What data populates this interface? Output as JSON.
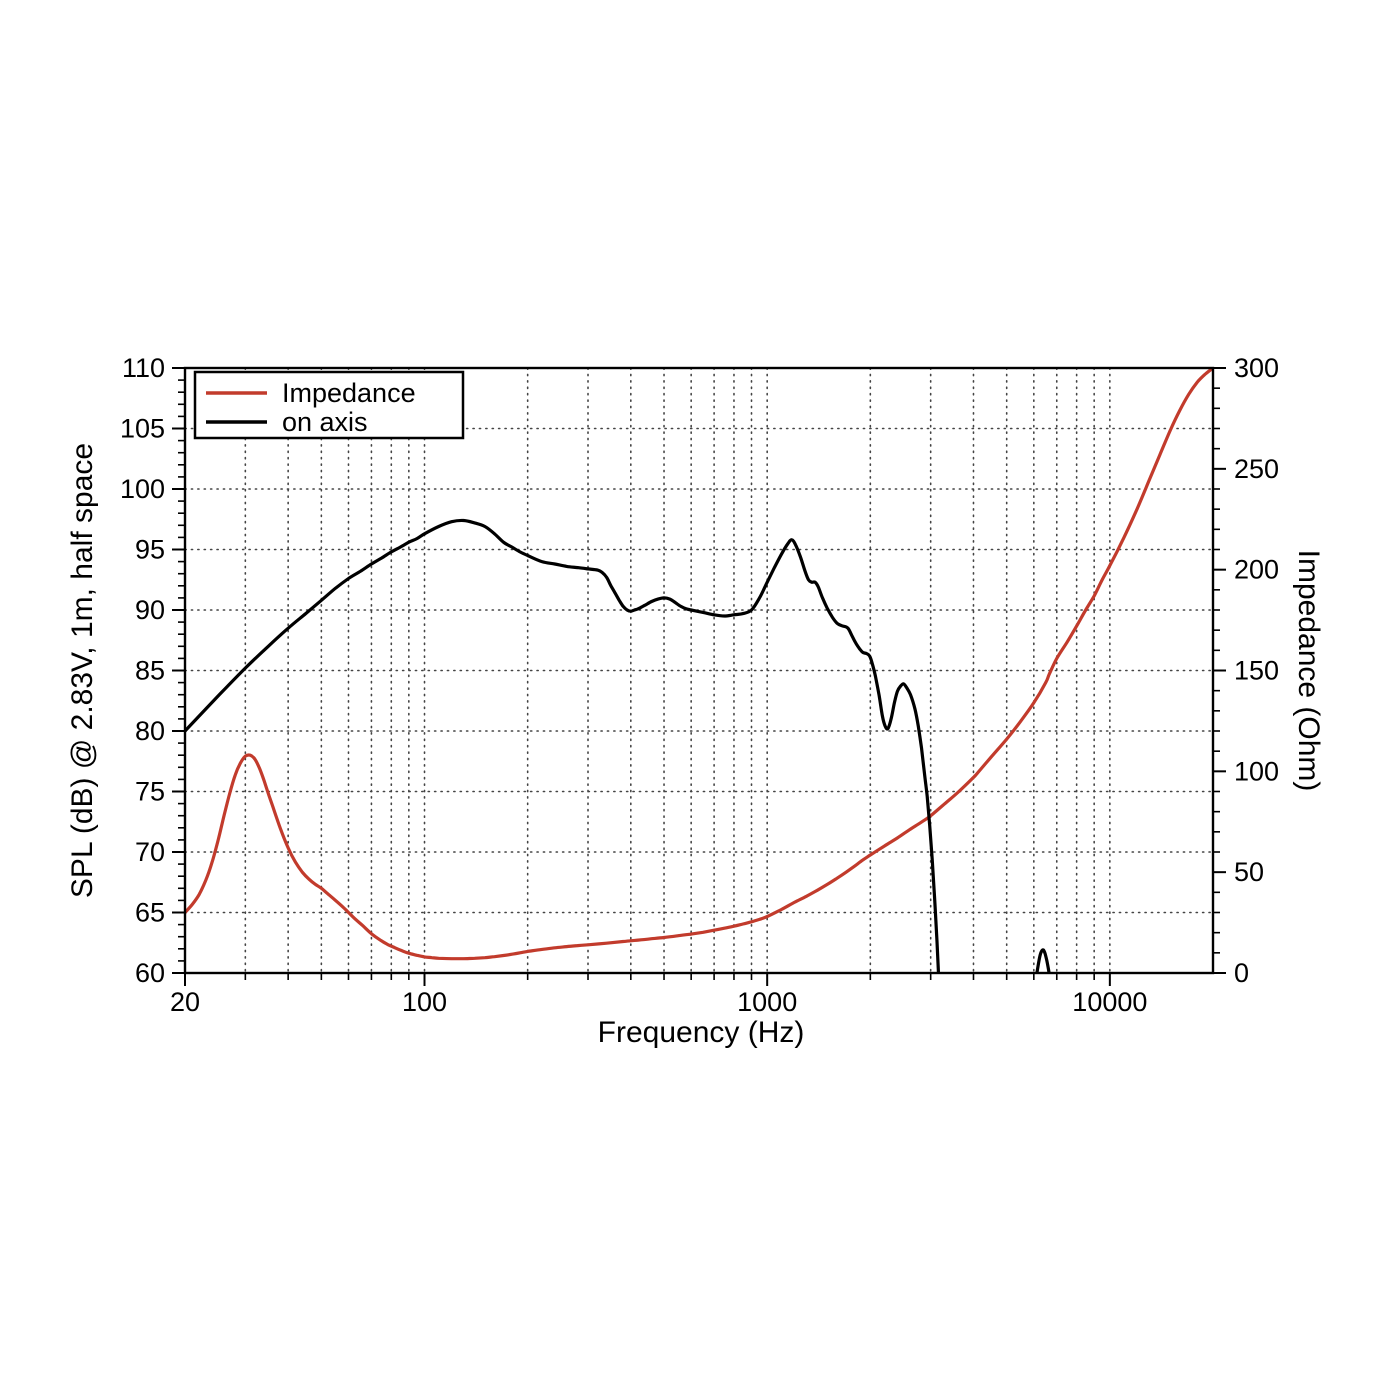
{
  "page": {
    "background": "#ffffff"
  },
  "chart_data": {
    "type": "line",
    "title": "",
    "xlabel": "Frequency (Hz)",
    "ylabel_left": "SPL (dB) @ 2.83V, 1m, half space",
    "ylabel_right": "Impedance (Ohm)",
    "x_scale": "log",
    "xlim": [
      20,
      20000
    ],
    "ylim_left": [
      60,
      110
    ],
    "ylim_right": [
      0,
      300
    ],
    "grid": "dotted",
    "colors": {
      "impedance": "#c23b2c",
      "on_axis": "#000000",
      "grid": "#444444",
      "spine": "#000000",
      "legend_border": "#000000",
      "legend_bg": "#ffffff"
    },
    "x_major_ticks": [
      {
        "value": 20,
        "label": "20"
      },
      {
        "value": 100,
        "label": "100"
      },
      {
        "value": 1000,
        "label": "1000"
      },
      {
        "value": 10000,
        "label": "10000"
      }
    ],
    "x_minor_ticks": [
      30,
      40,
      50,
      60,
      70,
      80,
      90,
      200,
      300,
      400,
      500,
      600,
      700,
      800,
      900,
      2000,
      3000,
      4000,
      5000,
      6000,
      7000,
      8000,
      9000
    ],
    "y_left_ticks": [
      {
        "value": 60,
        "label": "60"
      },
      {
        "value": 65,
        "label": "65"
      },
      {
        "value": 70,
        "label": "70"
      },
      {
        "value": 75,
        "label": "75"
      },
      {
        "value": 80,
        "label": "80"
      },
      {
        "value": 85,
        "label": "85"
      },
      {
        "value": 90,
        "label": "90"
      },
      {
        "value": 95,
        "label": "95"
      },
      {
        "value": 100,
        "label": "100"
      },
      {
        "value": 105,
        "label": "105"
      },
      {
        "value": 110,
        "label": "110"
      }
    ],
    "y_left_minor_step": 1,
    "y_right_ticks": [
      {
        "value": 0,
        "label": "0"
      },
      {
        "value": 50,
        "label": "50"
      },
      {
        "value": 100,
        "label": "100"
      },
      {
        "value": 150,
        "label": "150"
      },
      {
        "value": 200,
        "label": "200"
      },
      {
        "value": 250,
        "label": "250"
      },
      {
        "value": 300,
        "label": "300"
      }
    ],
    "y_right_minor_step": 10,
    "h_gridlines_db": [
      65,
      70,
      75,
      80,
      85,
      90,
      95,
      100,
      105
    ],
    "v_gridlines_hz": [
      30,
      40,
      50,
      60,
      70,
      80,
      90,
      100,
      200,
      300,
      400,
      500,
      600,
      700,
      800,
      900,
      1000,
      2000,
      3000,
      4000,
      5000,
      6000,
      7000,
      8000,
      9000,
      10000
    ],
    "legend": {
      "position": "upper-left",
      "entries": [
        {
          "label": "Impedance",
          "color": "#c23b2c"
        },
        {
          "label": "on axis",
          "color": "#000000"
        }
      ]
    },
    "series": [
      {
        "name": "Impedance",
        "axis": "right",
        "unit": "Ohm",
        "color": "#c23b2c",
        "segments": [
          [
            [
              20,
              30
            ],
            [
              21,
              34
            ],
            [
              22,
              39
            ],
            [
              23,
              46
            ],
            [
              24,
              55
            ],
            [
              25,
              66
            ],
            [
              26,
              78
            ],
            [
              27,
              89
            ],
            [
              28,
              98
            ],
            [
              29,
              104
            ],
            [
              30,
              107.5
            ],
            [
              31,
              108
            ],
            [
              32,
              106
            ],
            [
              33,
              101.5
            ],
            [
              34,
              95.5
            ],
            [
              35,
              89
            ],
            [
              36,
              83
            ],
            [
              38,
              71.5
            ],
            [
              40,
              62
            ],
            [
              42,
              55
            ],
            [
              44,
              50
            ],
            [
              46,
              46.5
            ],
            [
              48,
              44
            ],
            [
              50,
              42
            ],
            [
              52,
              39.5
            ],
            [
              55,
              36
            ],
            [
              58,
              32.5
            ],
            [
              60,
              30
            ],
            [
              63,
              26.5
            ],
            [
              66,
              23.5
            ],
            [
              70,
              19.5
            ],
            [
              74,
              16.5
            ],
            [
              78,
              14.2
            ],
            [
              82,
              12.5
            ],
            [
              86,
              11
            ],
            [
              90,
              9.8
            ],
            [
              95,
              8.8
            ],
            [
              100,
              8
            ],
            [
              105,
              7.6
            ],
            [
              110,
              7.3
            ],
            [
              120,
              7.1
            ],
            [
              130,
              7.1
            ],
            [
              140,
              7.3
            ],
            [
              150,
              7.6
            ],
            [
              160,
              8.1
            ],
            [
              170,
              8.7
            ],
            [
              180,
              9.3
            ],
            [
              190,
              10
            ],
            [
              200,
              10.7
            ],
            [
              220,
              11.7
            ],
            [
              240,
              12.5
            ],
            [
              260,
              13.1
            ],
            [
              280,
              13.6
            ],
            [
              300,
              14
            ],
            [
              340,
              14.8
            ],
            [
              380,
              15.6
            ],
            [
              420,
              16.3
            ],
            [
              460,
              17
            ],
            [
              500,
              17.6
            ],
            [
              550,
              18.5
            ],
            [
              600,
              19.3
            ],
            [
              650,
              20.2
            ],
            [
              700,
              21.2
            ],
            [
              750,
              22.2
            ],
            [
              800,
              23.2
            ],
            [
              850,
              24.3
            ],
            [
              900,
              25.4
            ],
            [
              950,
              26.6
            ],
            [
              1000,
              28
            ],
            [
              1100,
              31.5
            ],
            [
              1200,
              35
            ],
            [
              1300,
              38
            ],
            [
              1400,
              41
            ],
            [
              1500,
              44
            ],
            [
              1600,
              47
            ],
            [
              1700,
              50
            ],
            [
              1800,
              53
            ],
            [
              1900,
              56
            ],
            [
              2000,
              58.5
            ],
            [
              2200,
              63
            ],
            [
              2400,
              67
            ],
            [
              2600,
              71
            ],
            [
              2800,
              74.5
            ],
            [
              3000,
              78
            ],
            [
              3300,
              84
            ],
            [
              3600,
              89.5
            ],
            [
              4000,
              97
            ],
            [
              4100,
              99
            ],
            [
              4500,
              107
            ],
            [
              5000,
              116
            ],
            [
              5500,
              125
            ],
            [
              6000,
              134
            ],
            [
              6500,
              144
            ],
            [
              6650,
              148
            ],
            [
              7000,
              156
            ],
            [
              7500,
              164
            ],
            [
              8000,
              172
            ],
            [
              8500,
              180
            ],
            [
              9000,
              187
            ],
            [
              9500,
              195
            ],
            [
              10000,
              202
            ],
            [
              11000,
              216
            ],
            [
              12000,
              230
            ],
            [
              13000,
              244
            ],
            [
              14000,
              257
            ],
            [
              15000,
              269
            ],
            [
              16000,
              279
            ],
            [
              17000,
              287
            ],
            [
              18000,
              293
            ],
            [
              19000,
              297
            ],
            [
              20000,
              300
            ]
          ]
        ]
      },
      {
        "name": "on axis",
        "axis": "left",
        "unit": "dB",
        "color": "#000000",
        "segments": [
          [
            [
              20,
              80
            ],
            [
              25,
              82.9
            ],
            [
              30,
              85.2
            ],
            [
              35,
              87
            ],
            [
              40,
              88.5
            ],
            [
              45,
              89.7
            ],
            [
              50,
              90.8
            ],
            [
              55,
              91.8
            ],
            [
              60,
              92.6
            ],
            [
              65,
              93.2
            ],
            [
              70,
              93.8
            ],
            [
              75,
              94.3
            ],
            [
              80,
              94.8
            ],
            [
              85,
              95.2
            ],
            [
              90,
              95.6
            ],
            [
              95,
              95.9
            ],
            [
              100,
              96.3
            ],
            [
              110,
              96.9
            ],
            [
              120,
              97.3
            ],
            [
              130,
              97.4
            ],
            [
              140,
              97.2
            ],
            [
              150,
              96.9
            ],
            [
              160,
              96.3
            ],
            [
              170,
              95.6
            ],
            [
              180,
              95.2
            ],
            [
              190,
              94.8
            ],
            [
              200,
              94.5
            ],
            [
              220,
              94
            ],
            [
              240,
              93.8
            ],
            [
              260,
              93.6
            ],
            [
              280,
              93.5
            ],
            [
              300,
              93.4
            ],
            [
              320,
              93.3
            ],
            [
              330,
              93.1
            ],
            [
              340,
              92.7
            ],
            [
              350,
              92
            ],
            [
              360,
              91.4
            ],
            [
              370,
              90.8
            ],
            [
              380,
              90.3
            ],
            [
              390,
              90
            ],
            [
              400,
              89.9
            ],
            [
              410,
              90
            ],
            [
              420,
              90.1
            ],
            [
              440,
              90.4
            ],
            [
              460,
              90.7
            ],
            [
              480,
              90.9
            ],
            [
              500,
              91
            ],
            [
              520,
              90.9
            ],
            [
              540,
              90.6
            ],
            [
              560,
              90.3
            ],
            [
              580,
              90.1
            ],
            [
              600,
              90
            ],
            [
              650,
              89.8
            ],
            [
              700,
              89.6
            ],
            [
              750,
              89.5
            ],
            [
              800,
              89.6
            ],
            [
              850,
              89.7
            ],
            [
              900,
              90
            ],
            [
              950,
              91
            ],
            [
              1000,
              92.3
            ],
            [
              1050,
              93.5
            ],
            [
              1100,
              94.6
            ],
            [
              1150,
              95.5
            ],
            [
              1180,
              95.8
            ],
            [
              1210,
              95.4
            ],
            [
              1250,
              94.4
            ],
            [
              1290,
              93.2
            ],
            [
              1320,
              92.5
            ],
            [
              1350,
              92.3
            ],
            [
              1380,
              92.3
            ],
            [
              1410,
              91.9
            ],
            [
              1450,
              91
            ],
            [
              1500,
              90.1
            ],
            [
              1550,
              89.4
            ],
            [
              1600,
              88.9
            ],
            [
              1650,
              88.7
            ],
            [
              1700,
              88.6
            ],
            [
              1730,
              88.4
            ],
            [
              1780,
              87.7
            ],
            [
              1820,
              87.2
            ],
            [
              1860,
              86.8
            ],
            [
              1900,
              86.5
            ],
            [
              1950,
              86.4
            ],
            [
              1990,
              86.2
            ],
            [
              2030,
              85.5
            ],
            [
              2070,
              84.5
            ],
            [
              2120,
              83
            ],
            [
              2170,
              81.2
            ],
            [
              2210,
              80.4
            ],
            [
              2250,
              80.2
            ],
            [
              2300,
              81
            ],
            [
              2350,
              82.3
            ],
            [
              2400,
              83.3
            ],
            [
              2450,
              83.7
            ],
            [
              2500,
              83.9
            ],
            [
              2550,
              83.6
            ],
            [
              2620,
              83
            ],
            [
              2700,
              81.8
            ],
            [
              2760,
              80.4
            ],
            [
              2820,
              78.6
            ],
            [
              2880,
              76.4
            ],
            [
              2930,
              74.6
            ],
            [
              2980,
              72.2
            ],
            [
              3030,
              69.4
            ],
            [
              3080,
              66.2
            ],
            [
              3130,
              62.6
            ],
            [
              3190,
              57.5
            ]
          ],
          [
            [
              6080,
              59.3
            ],
            [
              6150,
              60.3
            ],
            [
              6250,
              61.4
            ],
            [
              6320,
              61.8
            ],
            [
              6400,
              61.9
            ],
            [
              6470,
              61.6
            ],
            [
              6550,
              61
            ],
            [
              6630,
              60.2
            ],
            [
              6700,
              59.3
            ]
          ]
        ]
      }
    ]
  }
}
